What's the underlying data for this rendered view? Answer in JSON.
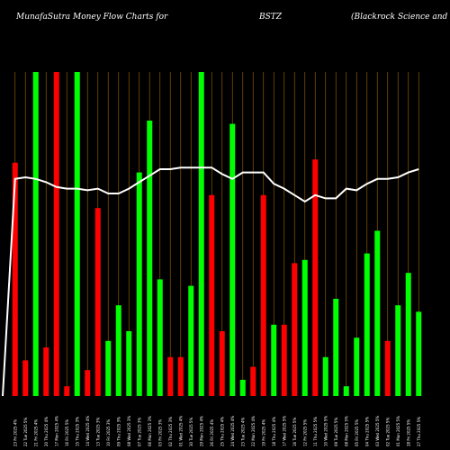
{
  "chart_data": {
    "type": "bar",
    "title_parts": [
      "MunafaSutra  Money Flow  Charts for",
      "BSTZ",
      "(Blackrock Science   and Techn"
    ],
    "colors": {
      "up": "#00ff00",
      "down": "#ff0000",
      "line": "#ffffff",
      "grid": "#8a5a00",
      "background": "#000000"
    },
    "ylim": [
      0,
      100
    ],
    "categories": [
      "23 Fri 2025 4%",
      "22 Tue 2025 5%",
      "21 Fri 2025 4%",
      "20 Thu 2025 4%",
      "17 Mon 2025 4%",
      "16 Fri 2025 5%",
      "15 Thu 2025 3%",
      "14 Wed 2025 4%",
      "13 Tue 2025 3%",
      "10 Fri 2025 3%",
      "09 Thu 2025 3%",
      "08 Wed 2025 3%",
      "07 Tue 2025 3%",
      "06 Mon 2025 3%",
      "03 Fri 2025 3%",
      "02 Thu 2025 3%",
      "01 Wed 2025 4%",
      "30 Tue 2025 5%",
      "29 Mon 2025 4%",
      "26 Fri 2025 4%",
      "25 Thu 2025 4%",
      "24 Wed 2025 4%",
      "23 Tue 2025 4%",
      "22 Mon 2025 4%",
      "19 Fri 2025 4%",
      "18 Thu 2025 4%",
      "17 Wed 2025 5%",
      "16 Tue 2025 5%",
      "12 Fri 2025 5%",
      "11 Thu 2025 5%",
      "10 Wed 2025 5%",
      "09 Tue 2025 5%",
      "08 Mon 2025 5%",
      "05 Fri 2025 5%",
      "04 Thu 2025 5%",
      "03 Wed 2025 5%",
      "02 Tue 2025 5%",
      "01 Mon 2025 5%",
      "28 Fri 2025 5%",
      "27 Thu 2025 5%"
    ],
    "bars": [
      {
        "value": 72,
        "dir": "down"
      },
      {
        "value": 11,
        "dir": "down"
      },
      {
        "value": 100,
        "dir": "up"
      },
      {
        "value": 15,
        "dir": "down"
      },
      {
        "value": 100,
        "dir": "down"
      },
      {
        "value": 3,
        "dir": "down"
      },
      {
        "value": 100,
        "dir": "up"
      },
      {
        "value": 8,
        "dir": "down"
      },
      {
        "value": 58,
        "dir": "down"
      },
      {
        "value": 17,
        "dir": "up"
      },
      {
        "value": 28,
        "dir": "up"
      },
      {
        "value": 20,
        "dir": "up"
      },
      {
        "value": 69,
        "dir": "up"
      },
      {
        "value": 85,
        "dir": "up"
      },
      {
        "value": 36,
        "dir": "up"
      },
      {
        "value": 12,
        "dir": "down"
      },
      {
        "value": 12,
        "dir": "down"
      },
      {
        "value": 34,
        "dir": "up"
      },
      {
        "value": 100,
        "dir": "up"
      },
      {
        "value": 62,
        "dir": "down"
      },
      {
        "value": 20,
        "dir": "down"
      },
      {
        "value": 84,
        "dir": "up"
      },
      {
        "value": 5,
        "dir": "up"
      },
      {
        "value": 9,
        "dir": "down"
      },
      {
        "value": 62,
        "dir": "down"
      },
      {
        "value": 22,
        "dir": "up"
      },
      {
        "value": 22,
        "dir": "down"
      },
      {
        "value": 41,
        "dir": "down"
      },
      {
        "value": 42,
        "dir": "up"
      },
      {
        "value": 73,
        "dir": "down"
      },
      {
        "value": 12,
        "dir": "up"
      },
      {
        "value": 30,
        "dir": "up"
      },
      {
        "value": 3,
        "dir": "up"
      },
      {
        "value": 18,
        "dir": "up"
      },
      {
        "value": 44,
        "dir": "up"
      },
      {
        "value": 51,
        "dir": "up"
      },
      {
        "value": 17,
        "dir": "down"
      },
      {
        "value": 28,
        "dir": "up"
      },
      {
        "value": 38,
        "dir": "up"
      },
      {
        "value": 26,
        "dir": "up"
      }
    ],
    "line_values": [
      67,
      67.5,
      67,
      66,
      64.5,
      64,
      64,
      63.5,
      64,
      62.5,
      62.5,
      64,
      66,
      68,
      70,
      70,
      70.5,
      70.5,
      70.5,
      70.5,
      68.5,
      67,
      69,
      69,
      69,
      65.5,
      64,
      62,
      60,
      62,
      61,
      61,
      64,
      63.5,
      65.5,
      67,
      67,
      67.5,
      69,
      70
    ]
  }
}
